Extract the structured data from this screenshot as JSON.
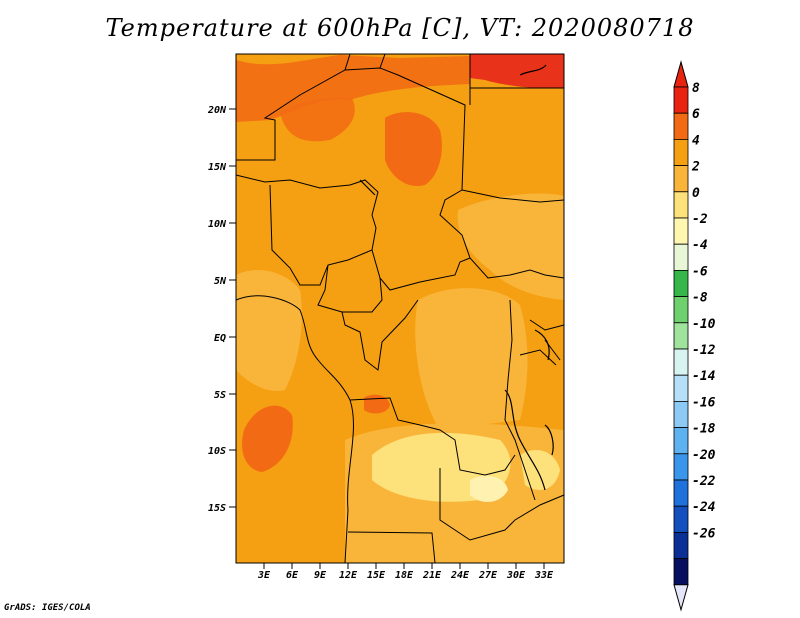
{
  "title": "Temperature at 600hPa [C], VT: 2020080718",
  "footer": "GrADS: IGES/COLA",
  "map": {
    "lat_labels": [
      "20N",
      "15N",
      "10N",
      "5N",
      "EQ",
      "5S",
      "10S",
      "15S"
    ],
    "lon_labels": [
      "3E",
      "6E",
      "9E",
      "12E",
      "15E",
      "18E",
      "21E",
      "24E",
      "27E",
      "30E",
      "33E"
    ],
    "fill_colors": {
      "minus2_to_0": "#fde17a",
      "0_to_2": "#f9b53a",
      "2_to_4": "#f59f12",
      "4_to_6": "#f26b14",
      "6_to_8": "#e8331a"
    }
  },
  "colorbar": {
    "labels": [
      "8",
      "6",
      "4",
      "2",
      "0",
      "-2",
      "-4",
      "-6",
      "-8",
      "-10",
      "-12",
      "-14",
      "-16",
      "-18",
      "-20",
      "-22",
      "-24",
      "-26"
    ],
    "colors": [
      "#e8230f",
      "#f26b14",
      "#f59f12",
      "#f9b53a",
      "#fde17a",
      "#fff7b0",
      "#e8f7d5",
      "#37b74a",
      "#6fd06e",
      "#9fe39c",
      "#d8f4f0",
      "#b6e0f7",
      "#8ccaf5",
      "#5fb2f0",
      "#3a96ea",
      "#1f72dc",
      "#1450bd",
      "#0c2f96",
      "#06105e"
    ],
    "top_triangle_color": "#e8230f",
    "bottom_triangle_color": "#e6e6fa"
  }
}
